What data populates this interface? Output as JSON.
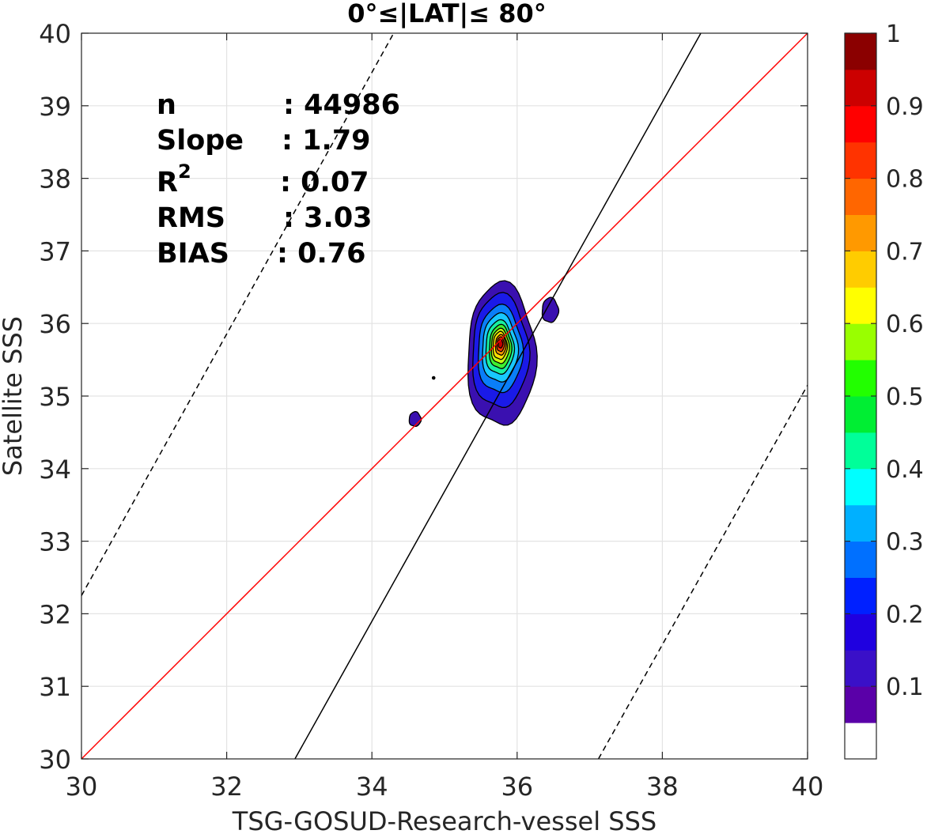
{
  "chart_data": {
    "type": "heatmap",
    "subtype": "density-contour scatter comparison",
    "title": "0°≤|LAT|≤ 80°",
    "xlabel": "TSG-GOSUD-Research-vessel SSS",
    "ylabel": "Satellite SSS",
    "xlim": [
      30,
      40
    ],
    "ylim": [
      30,
      40
    ],
    "x_ticks": [
      "30",
      "32",
      "34",
      "36",
      "38",
      "40"
    ],
    "y_ticks": [
      "30",
      "31",
      "32",
      "33",
      "34",
      "35",
      "36",
      "37",
      "38",
      "39",
      "40"
    ],
    "grid": true,
    "stats": [
      {
        "key": "n",
        "value": ": 44986"
      },
      {
        "key": "Slope",
        "value": ": 1.79"
      },
      {
        "key": "R",
        "sup": "2",
        "value": ": 0.07"
      },
      {
        "key": "RMS",
        "value": ": 3.03"
      },
      {
        "key": "BIAS",
        "value": ": 0.76"
      }
    ],
    "lines": [
      {
        "name": "one-to-one",
        "color": "#ff0000",
        "style": "solid",
        "x": [
          30,
          40
        ],
        "y": [
          30,
          40
        ]
      },
      {
        "name": "regression",
        "color": "#000000",
        "style": "solid",
        "x": [
          32.94,
          38.53
        ],
        "y": [
          30,
          40
        ]
      },
      {
        "name": "upper-bound",
        "color": "#000000",
        "style": "dashed",
        "x": [
          30,
          34.3
        ],
        "y": [
          32.25,
          40
        ]
      },
      {
        "name": "lower-bound",
        "color": "#000000",
        "style": "dashed",
        "x": [
          37.12,
          40
        ],
        "y": [
          30,
          35.15
        ]
      }
    ],
    "contour_levels": [
      {
        "level": 0.05,
        "color": "#3a10b0",
        "cx": 35.76,
        "cy": 35.55,
        "rx": 0.46,
        "ry": 0.98
      },
      {
        "level": 0.15,
        "color": "#1a1ae8",
        "cx": 35.75,
        "cy": 35.6,
        "rx": 0.38,
        "ry": 0.78
      },
      {
        "level": 0.25,
        "color": "#0a7ef8",
        "cx": 35.75,
        "cy": 35.63,
        "rx": 0.3,
        "ry": 0.6
      },
      {
        "level": 0.35,
        "color": "#18c8ff",
        "cx": 35.75,
        "cy": 35.65,
        "rx": 0.24,
        "ry": 0.47
      },
      {
        "level": 0.45,
        "color": "#18f0a0",
        "cx": 35.75,
        "cy": 35.66,
        "rx": 0.19,
        "ry": 0.37
      },
      {
        "level": 0.55,
        "color": "#40f030",
        "cx": 35.76,
        "cy": 35.67,
        "rx": 0.15,
        "ry": 0.3
      },
      {
        "level": 0.65,
        "color": "#c8ff10",
        "cx": 35.76,
        "cy": 35.68,
        "rx": 0.12,
        "ry": 0.24
      },
      {
        "level": 0.72,
        "color": "#ffe000",
        "cx": 35.76,
        "cy": 35.69,
        "rx": 0.095,
        "ry": 0.19
      },
      {
        "level": 0.8,
        "color": "#ff9a00",
        "cx": 35.77,
        "cy": 35.7,
        "rx": 0.07,
        "ry": 0.14
      },
      {
        "level": 0.88,
        "color": "#ff3a00",
        "cx": 35.77,
        "cy": 35.71,
        "rx": 0.05,
        "ry": 0.1
      },
      {
        "level": 0.96,
        "color": "#c00000",
        "cx": 35.77,
        "cy": 35.72,
        "rx": 0.03,
        "ry": 0.06
      }
    ],
    "small_blobs": [
      {
        "color": "#3a10b0",
        "cx": 36.45,
        "cy": 36.18,
        "rx": 0.11,
        "ry": 0.17
      },
      {
        "color": "#3a10b0",
        "cx": 34.59,
        "cy": 34.68,
        "rx": 0.08,
        "ry": 0.1
      }
    ],
    "points": [
      {
        "x": 34.85,
        "y": 35.25
      }
    ],
    "colorbar": {
      "range": [
        0,
        1
      ],
      "ticks": [
        "0.1",
        "0.2",
        "0.3",
        "0.4",
        "0.5",
        "0.6",
        "0.7",
        "0.8",
        "0.9",
        "1"
      ],
      "colors": [
        "#ffffff",
        "#5a00a8",
        "#3a10c8",
        "#1f00e0",
        "#0020ff",
        "#0070ff",
        "#00b0ff",
        "#00ffff",
        "#00ff99",
        "#00ee33",
        "#22ff00",
        "#99ff00",
        "#ffff00",
        "#ffcc00",
        "#ff9900",
        "#ff6600",
        "#ff3300",
        "#ff0000",
        "#cc0000",
        "#8b0000"
      ]
    }
  }
}
